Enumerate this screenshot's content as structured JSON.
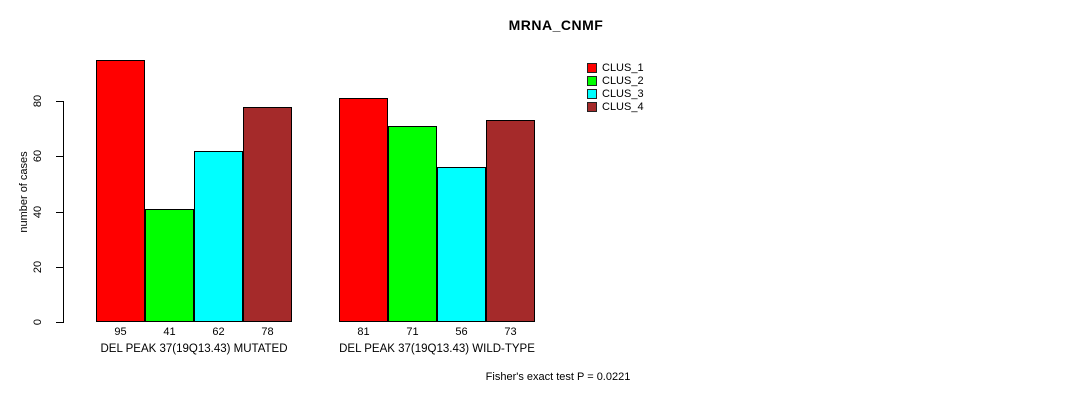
{
  "chart_data": {
    "type": "bar",
    "title": "MRNA_CNMF",
    "ylabel": "number of cases",
    "yticks": [
      0,
      20,
      40,
      60,
      80
    ],
    "ylim": [
      0,
      95
    ],
    "grid": false,
    "legend_position": "top-right",
    "categories": [
      "DEL PEAK 37(19Q13.43) MUTATED",
      "DEL PEAK 37(19Q13.43) WILD-TYPE"
    ],
    "series": [
      {
        "name": "CLUS_1",
        "color": "#FF0000",
        "values": [
          95,
          81
        ]
      },
      {
        "name": "CLUS_2",
        "color": "#00FF00",
        "values": [
          41,
          71
        ]
      },
      {
        "name": "CLUS_3",
        "color": "#00FFFF",
        "values": [
          62,
          56
        ]
      },
      {
        "name": "CLUS_4",
        "color": "#A52A2A",
        "values": [
          78,
          73
        ]
      }
    ],
    "bar_value_labels": [
      [
        95,
        41,
        62,
        78
      ],
      [
        81,
        71,
        56,
        73
      ]
    ],
    "annotation": "Fisher's exact test P = 0.0221",
    "axis_color": "#000000",
    "background_color": "#FFFFFF"
  }
}
